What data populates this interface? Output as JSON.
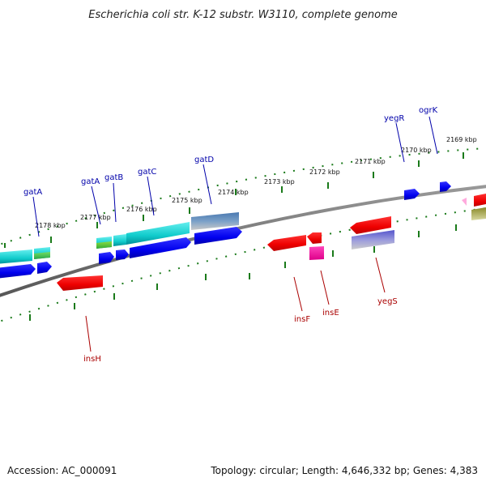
{
  "title": "Escherichia coli str. K-12 substr. W3110, complete genome",
  "footer": {
    "accession": "Accession: AC_000091",
    "summary": "Topology: circular; Length: 4,646,332 bp; Genes: 4,383"
  },
  "colors": {
    "backbone": "#808080",
    "tick": "#1a7a1a",
    "forward_label": "#0000aa",
    "reverse_label": "#aa0000"
  },
  "ticks": [
    "2178 kbp",
    "2177 kbp",
    "2176 kbp",
    "2175 kbp",
    "2174 kbp",
    "2173 kbp",
    "2172 kbp",
    "2171 kbp",
    "2170 kbp",
    "2169 kbp"
  ],
  "forward_genes": [
    "gatA",
    "gatA",
    "gatB",
    "gatC",
    "gatD",
    "yegR",
    "ogrK"
  ],
  "reverse_genes": [
    "insH",
    "insF",
    "insE",
    "yegS"
  ]
}
